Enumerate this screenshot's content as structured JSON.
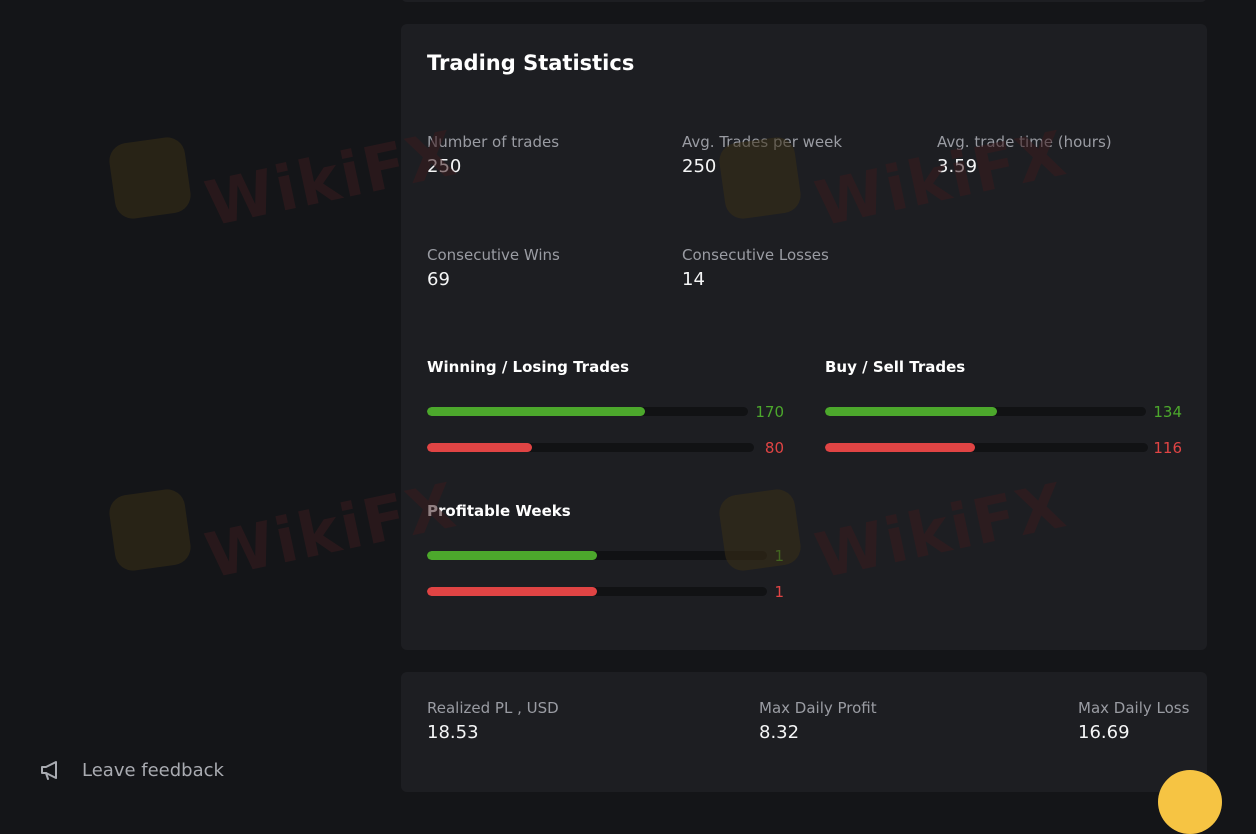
{
  "trading_statistics": {
    "title": "Trading Statistics",
    "stats": [
      {
        "label": "Number of trades",
        "value": "250"
      },
      {
        "label": "Avg. Trades per week",
        "value": "250"
      },
      {
        "label": "Avg. trade time (hours)",
        "value": "3.59"
      },
      {
        "label": "Consecutive Wins",
        "value": "69"
      },
      {
        "label": "Consecutive Losses",
        "value": "14"
      }
    ],
    "winning_losing": {
      "title": "Winning / Losing Trades",
      "win": {
        "value": "170",
        "fraction": 0.68
      },
      "loss": {
        "value": "80",
        "fraction": 0.32
      }
    },
    "buy_sell": {
      "title": "Buy / Sell Trades",
      "buy": {
        "value": "134",
        "fraction": 0.536
      },
      "sell": {
        "value": "116",
        "fraction": 0.464
      }
    },
    "profitable_weeks": {
      "title": "Profitable Weeks",
      "profitable": {
        "value": "1",
        "fraction": 0.5
      },
      "unprofitable": {
        "value": "1",
        "fraction": 0.5
      }
    }
  },
  "pl_summary": {
    "realized_pl": {
      "label": "Realized PL , USD",
      "value": "18.53"
    },
    "max_daily_profit": {
      "label": "Max Daily Profit",
      "value": "8.32"
    },
    "max_daily_loss": {
      "label": "Max Daily Loss",
      "value": "16.69"
    }
  },
  "sidebar": {
    "feedback_label": "Leave feedback",
    "feedback_icon": "megaphone-icon"
  },
  "watermark": {
    "text": "WikiFX"
  },
  "colors": {
    "background": "#141518",
    "card": "#1d1e22",
    "positive": "#4ca82c",
    "negative": "#e04444"
  }
}
